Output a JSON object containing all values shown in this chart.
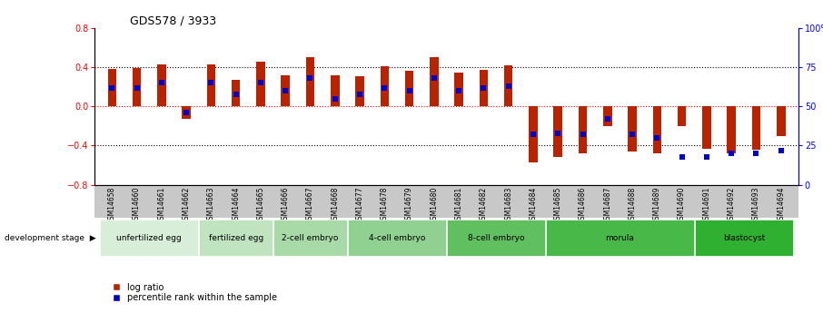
{
  "title": "GDS578 / 3933",
  "samples": [
    "GSM14658",
    "GSM14660",
    "GSM14661",
    "GSM14662",
    "GSM14663",
    "GSM14664",
    "GSM14665",
    "GSM14666",
    "GSM14667",
    "GSM14668",
    "GSM14677",
    "GSM14678",
    "GSM14679",
    "GSM14680",
    "GSM14681",
    "GSM14682",
    "GSM14683",
    "GSM14684",
    "GSM14685",
    "GSM14686",
    "GSM14687",
    "GSM14688",
    "GSM14689",
    "GSM14690",
    "GSM14691",
    "GSM14692",
    "GSM14693",
    "GSM14694"
  ],
  "log_ratio": [
    0.38,
    0.39,
    0.43,
    -0.13,
    0.43,
    0.27,
    0.46,
    0.32,
    0.5,
    0.32,
    0.31,
    0.41,
    0.36,
    0.5,
    0.35,
    0.37,
    0.42,
    -0.57,
    -0.52,
    -0.48,
    -0.2,
    -0.46,
    -0.48,
    -0.2,
    -0.43,
    -0.48,
    -0.44,
    -0.3
  ],
  "percentile": [
    62,
    62,
    65,
    46,
    65,
    58,
    65,
    60,
    68,
    55,
    58,
    62,
    60,
    68,
    60,
    62,
    63,
    32,
    33,
    32,
    42,
    32,
    30,
    18,
    18,
    20,
    20,
    22
  ],
  "stages": [
    {
      "label": "unfertilized egg",
      "count": 4,
      "color": "#d8eed8"
    },
    {
      "label": "fertilized egg",
      "count": 3,
      "color": "#c0e4c0"
    },
    {
      "label": "2-cell embryo",
      "count": 3,
      "color": "#a8daa8"
    },
    {
      "label": "4-cell embryo",
      "count": 4,
      "color": "#90d090"
    },
    {
      "label": "8-cell embryo",
      "count": 4,
      "color": "#60c060"
    },
    {
      "label": "morula",
      "count": 6,
      "color": "#48b848"
    },
    {
      "label": "blastocyst",
      "count": 4,
      "color": "#30b030"
    }
  ],
  "bar_color": "#bb2200",
  "dot_color": "#0000cc",
  "ylim_left": [
    -0.8,
    0.8
  ],
  "ylim_right": [
    0,
    100
  ],
  "legend_log_ratio": "log ratio",
  "legend_percentile": "percentile rank within the sample",
  "dev_stage_label": "development stage"
}
